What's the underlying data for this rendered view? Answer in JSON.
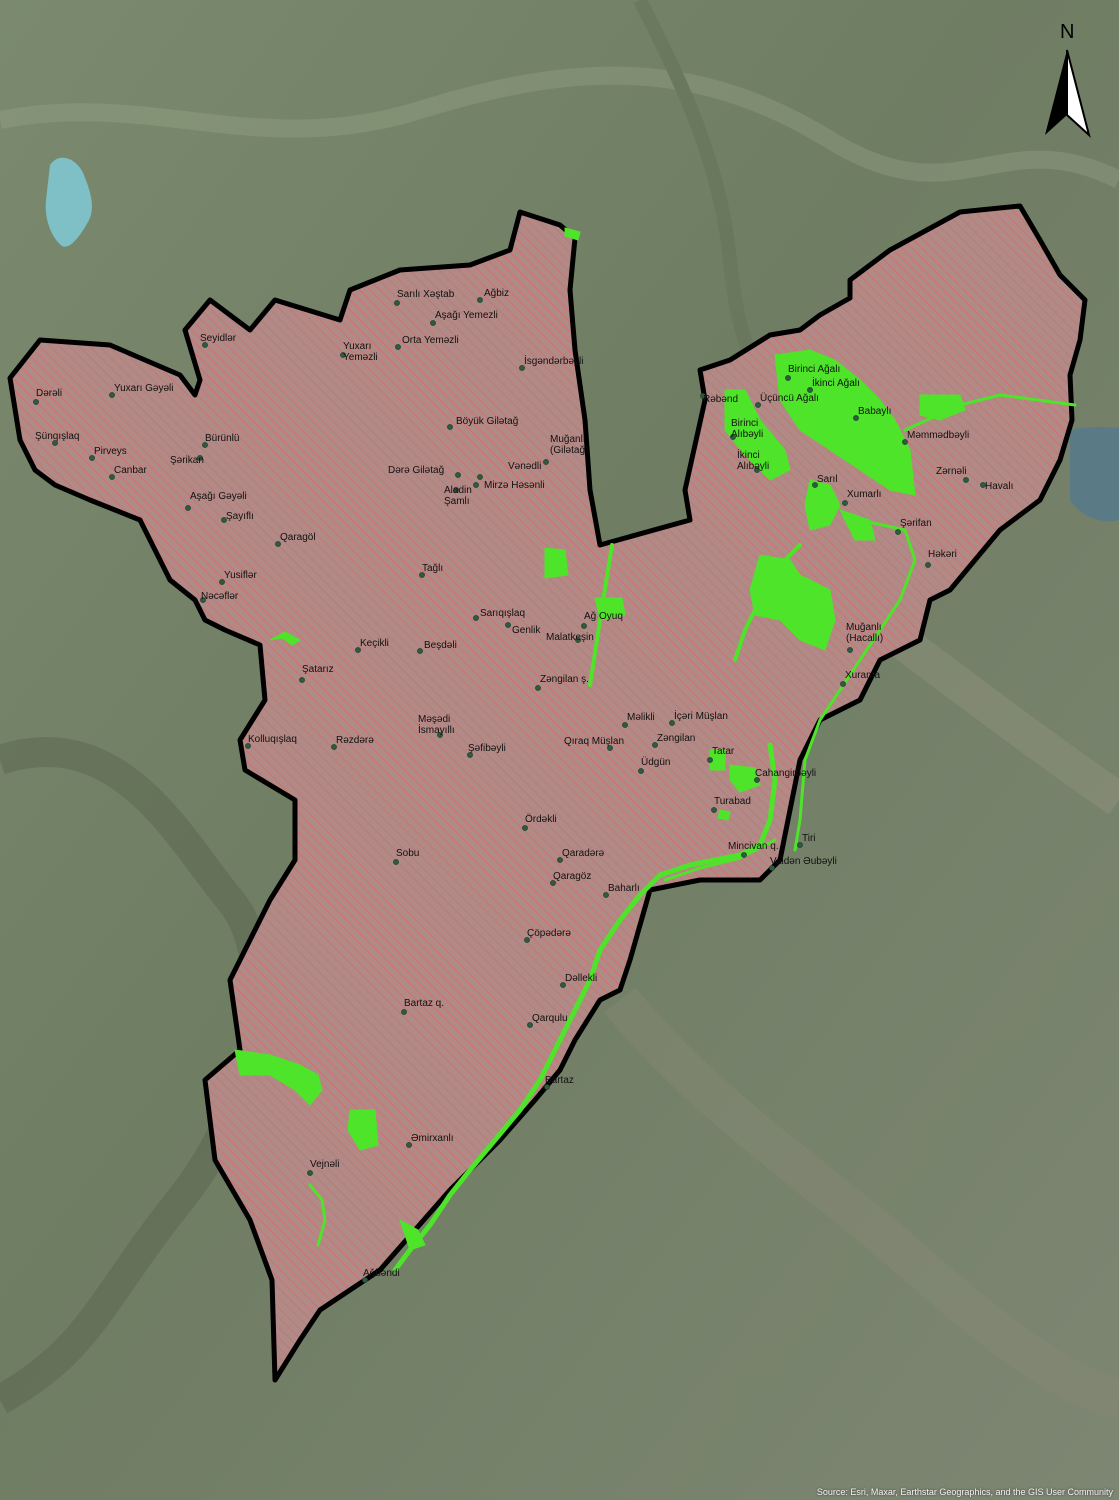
{
  "north_arrow": {
    "label": "N"
  },
  "attribution": "Source: Esri, Maxar, Earthstar Geographics, and the GIS User Community",
  "colors": {
    "district_fill": "#b08a86",
    "hatch": "#e26262",
    "boundary": "#000000",
    "green_zones": "#4ee42a",
    "background": "#6d7a63"
  },
  "places": [
    {
      "label": "Sarılı Xəştab"
    },
    {
      "label": "Ağbiz"
    },
    {
      "label": "Aşağı Yemezli"
    },
    {
      "label": "Seyidlər"
    },
    {
      "label": "Yuxarı Yeməzli"
    },
    {
      "label": "Orta Yeməzli"
    },
    {
      "label": "İsgəndərbəyli"
    },
    {
      "label": "Dərəli"
    },
    {
      "label": "Yuxarı Gəyəli"
    },
    {
      "label": "Böyük Gilətağ"
    },
    {
      "label": "Şünqışlaq"
    },
    {
      "label": "Bürünlü"
    },
    {
      "label": "Pirveys"
    },
    {
      "label": "Şərikan"
    },
    {
      "label": "Canbar"
    },
    {
      "label": "Muğanlı (Gilətağ)"
    },
    {
      "label": "Dərə Gilətağ"
    },
    {
      "label": "Vənədli"
    },
    {
      "label": "Mirzə Həsənli"
    },
    {
      "label": "Aladin Şamlı"
    },
    {
      "label": "Aşağı Gəyəli"
    },
    {
      "label": "Şayıflı"
    },
    {
      "label": "Qaragöl"
    },
    {
      "label": "Yusiflər"
    },
    {
      "label": "Nəcəflər"
    },
    {
      "label": "Tağlı"
    },
    {
      "label": "Sarıqışlaq"
    },
    {
      "label": "Genlik"
    },
    {
      "label": "Ağ Oyuq"
    },
    {
      "label": "Malatkeşin"
    },
    {
      "label": "Keçikli"
    },
    {
      "label": "Beşdəli"
    },
    {
      "label": "Şatarız"
    },
    {
      "label": "Zəngilan ş."
    },
    {
      "label": "Məşədi İsmayıllı"
    },
    {
      "label": "Məlikli"
    },
    {
      "label": "İçəri Müşlan"
    },
    {
      "label": "Kolluqışlaq"
    },
    {
      "label": "Rəzdərə"
    },
    {
      "label": "Şəfibəyli"
    },
    {
      "label": "Qıraq Müşlan"
    },
    {
      "label": "Zəngilan"
    },
    {
      "label": "Tatar"
    },
    {
      "label": "Üdgün"
    },
    {
      "label": "Cahangirbəyli"
    },
    {
      "label": "Turabad"
    },
    {
      "label": "Ördəkli"
    },
    {
      "label": "Tiri"
    },
    {
      "label": "Mincivan q."
    },
    {
      "label": "Vaidən Əubəyli"
    },
    {
      "label": "Sobu"
    },
    {
      "label": "Qaradərə"
    },
    {
      "label": "Qaragöz"
    },
    {
      "label": "Baharlı"
    },
    {
      "label": "Çöpədərə"
    },
    {
      "label": "Dəllekli"
    },
    {
      "label": "Bartaz q."
    },
    {
      "label": "Qarqulu"
    },
    {
      "label": "Bartaz"
    },
    {
      "label": "Əmirxanlı"
    },
    {
      "label": "Vejnəli"
    },
    {
      "label": "Ağbəndi"
    },
    {
      "label": "Rəbənd"
    },
    {
      "label": "Birinci Ağalı"
    },
    {
      "label": "İkinci Ağalı"
    },
    {
      "label": "Üçüncü Ağalı"
    },
    {
      "label": "Babaylı"
    },
    {
      "label": "Birinci Alıbəyli"
    },
    {
      "label": "Məmmədbəyli"
    },
    {
      "label": "İkinci Alıbəyli"
    },
    {
      "label": "Sarıl"
    },
    {
      "label": "Zərnəli"
    },
    {
      "label": "Havalı"
    },
    {
      "label": "Xumarlı"
    },
    {
      "label": "Şərifan"
    },
    {
      "label": "Həkəri"
    },
    {
      "label": "Muğanlı (Hacallı)"
    },
    {
      "label": "Xurama"
    }
  ]
}
